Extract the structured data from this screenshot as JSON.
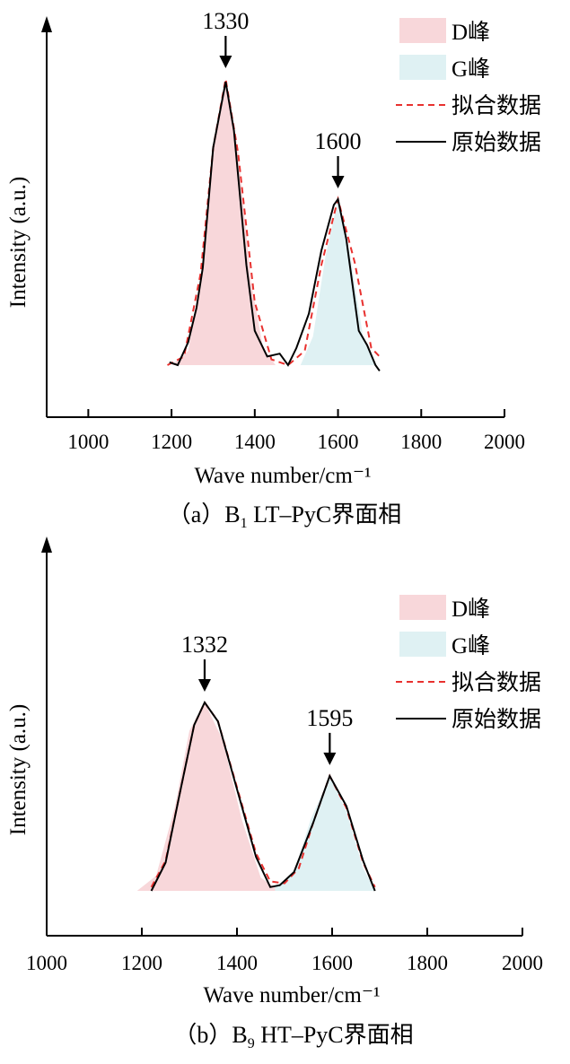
{
  "chart_data": [
    {
      "type": "area",
      "panel": "a",
      "caption_prefix": "（a）B",
      "caption_sub": "1",
      "caption_suffix": " LT–PyC界面相",
      "xlabel": "Wave number/cm⁻¹",
      "ylabel": "Intensity (a.u.)",
      "xlim": [
        900,
        2000
      ],
      "xticks": [
        "1000",
        "1200",
        "1400",
        "1600",
        "1800",
        "2000"
      ],
      "peaks": [
        {
          "label": "1330",
          "x": 1330,
          "intensity": 1.0
        },
        {
          "label": "1600",
          "x": 1600,
          "intensity": 0.58
        }
      ],
      "series": [
        {
          "name": "D峰",
          "kind": "fill",
          "color": "#f8d7da",
          "x": [
            1200,
            1240,
            1270,
            1300,
            1330,
            1360,
            1390,
            1420,
            1450
          ],
          "y": [
            0.0,
            0.05,
            0.3,
            0.75,
            1.0,
            0.75,
            0.3,
            0.06,
            0.0
          ]
        },
        {
          "name": "G峰",
          "kind": "fill",
          "color": "#dff1f3",
          "x": [
            1510,
            1540,
            1570,
            1600,
            1630,
            1660,
            1690
          ],
          "y": [
            0.0,
            0.1,
            0.38,
            0.58,
            0.38,
            0.1,
            0.0
          ]
        },
        {
          "name": "拟合数据",
          "kind": "dashed",
          "color": "#e8312f",
          "x": [
            1190,
            1230,
            1270,
            1300,
            1330,
            1360,
            1400,
            1440,
            1480,
            1520,
            1560,
            1600,
            1640,
            1680,
            1700
          ],
          "y": [
            0.0,
            0.03,
            0.32,
            0.76,
            1.0,
            0.74,
            0.22,
            0.02,
            0.0,
            0.05,
            0.35,
            0.58,
            0.36,
            0.06,
            0.03
          ]
        },
        {
          "name": "原始数据",
          "kind": "solid",
          "color": "#000000",
          "x": [
            1195,
            1215,
            1240,
            1260,
            1275,
            1300,
            1330,
            1350,
            1380,
            1400,
            1430,
            1460,
            1480,
            1500,
            1530,
            1560,
            1590,
            1600,
            1620,
            1650,
            1670,
            1690,
            1700
          ],
          "y": [
            0.01,
            0.0,
            0.08,
            0.2,
            0.34,
            0.76,
            0.99,
            0.82,
            0.35,
            0.12,
            0.03,
            0.04,
            0.0,
            0.06,
            0.18,
            0.4,
            0.56,
            0.58,
            0.44,
            0.12,
            0.07,
            0.0,
            -0.02
          ]
        }
      ]
    },
    {
      "type": "area",
      "panel": "b",
      "caption_prefix": "（b）B",
      "caption_sub": "9",
      "caption_suffix": " HT–PyC界面相",
      "xlabel": "Wave number/cm⁻¹",
      "ylabel": "Intensity (a.u.)",
      "xlim": [
        1000,
        2000
      ],
      "xticks": [
        "1000",
        "1200",
        "1400",
        "1600",
        "1800",
        "2000"
      ],
      "peaks": [
        {
          "label": "1332",
          "x": 1332,
          "intensity": 1.0
        },
        {
          "label": "1595",
          "x": 1595,
          "intensity": 0.61
        }
      ],
      "series": [
        {
          "name": "D峰",
          "kind": "fill",
          "color": "#f8d7da",
          "x": [
            1190,
            1230,
            1270,
            1300,
            1332,
            1370,
            1410,
            1450,
            1490
          ],
          "y": [
            0.0,
            0.08,
            0.45,
            0.85,
            1.0,
            0.8,
            0.38,
            0.07,
            0.0
          ]
        },
        {
          "name": "G峰",
          "kind": "fill",
          "color": "#dff1f3",
          "x": [
            1480,
            1520,
            1555,
            1595,
            1630,
            1665,
            1690
          ],
          "y": [
            0.02,
            0.1,
            0.38,
            0.61,
            0.42,
            0.12,
            0.0
          ]
        },
        {
          "name": "拟合数据",
          "kind": "dashed",
          "color": "#e8312f",
          "x": [
            1220,
            1250,
            1280,
            1310,
            1332,
            1360,
            1400,
            1440,
            1470,
            1500,
            1530,
            1560,
            1595,
            1630,
            1665,
            1690
          ],
          "y": [
            0.02,
            0.16,
            0.52,
            0.88,
            1.0,
            0.9,
            0.55,
            0.2,
            0.05,
            0.04,
            0.12,
            0.36,
            0.61,
            0.44,
            0.15,
            0.02
          ]
        },
        {
          "name": "原始数据",
          "kind": "solid",
          "color": "#000000",
          "x": [
            1220,
            1250,
            1280,
            1310,
            1332,
            1360,
            1400,
            1440,
            1470,
            1490,
            1520,
            1560,
            1595,
            1630,
            1665,
            1690
          ],
          "y": [
            0.0,
            0.15,
            0.52,
            0.88,
            1.0,
            0.9,
            0.54,
            0.18,
            0.02,
            0.03,
            0.1,
            0.36,
            0.61,
            0.45,
            0.16,
            0.0
          ]
        }
      ]
    }
  ]
}
